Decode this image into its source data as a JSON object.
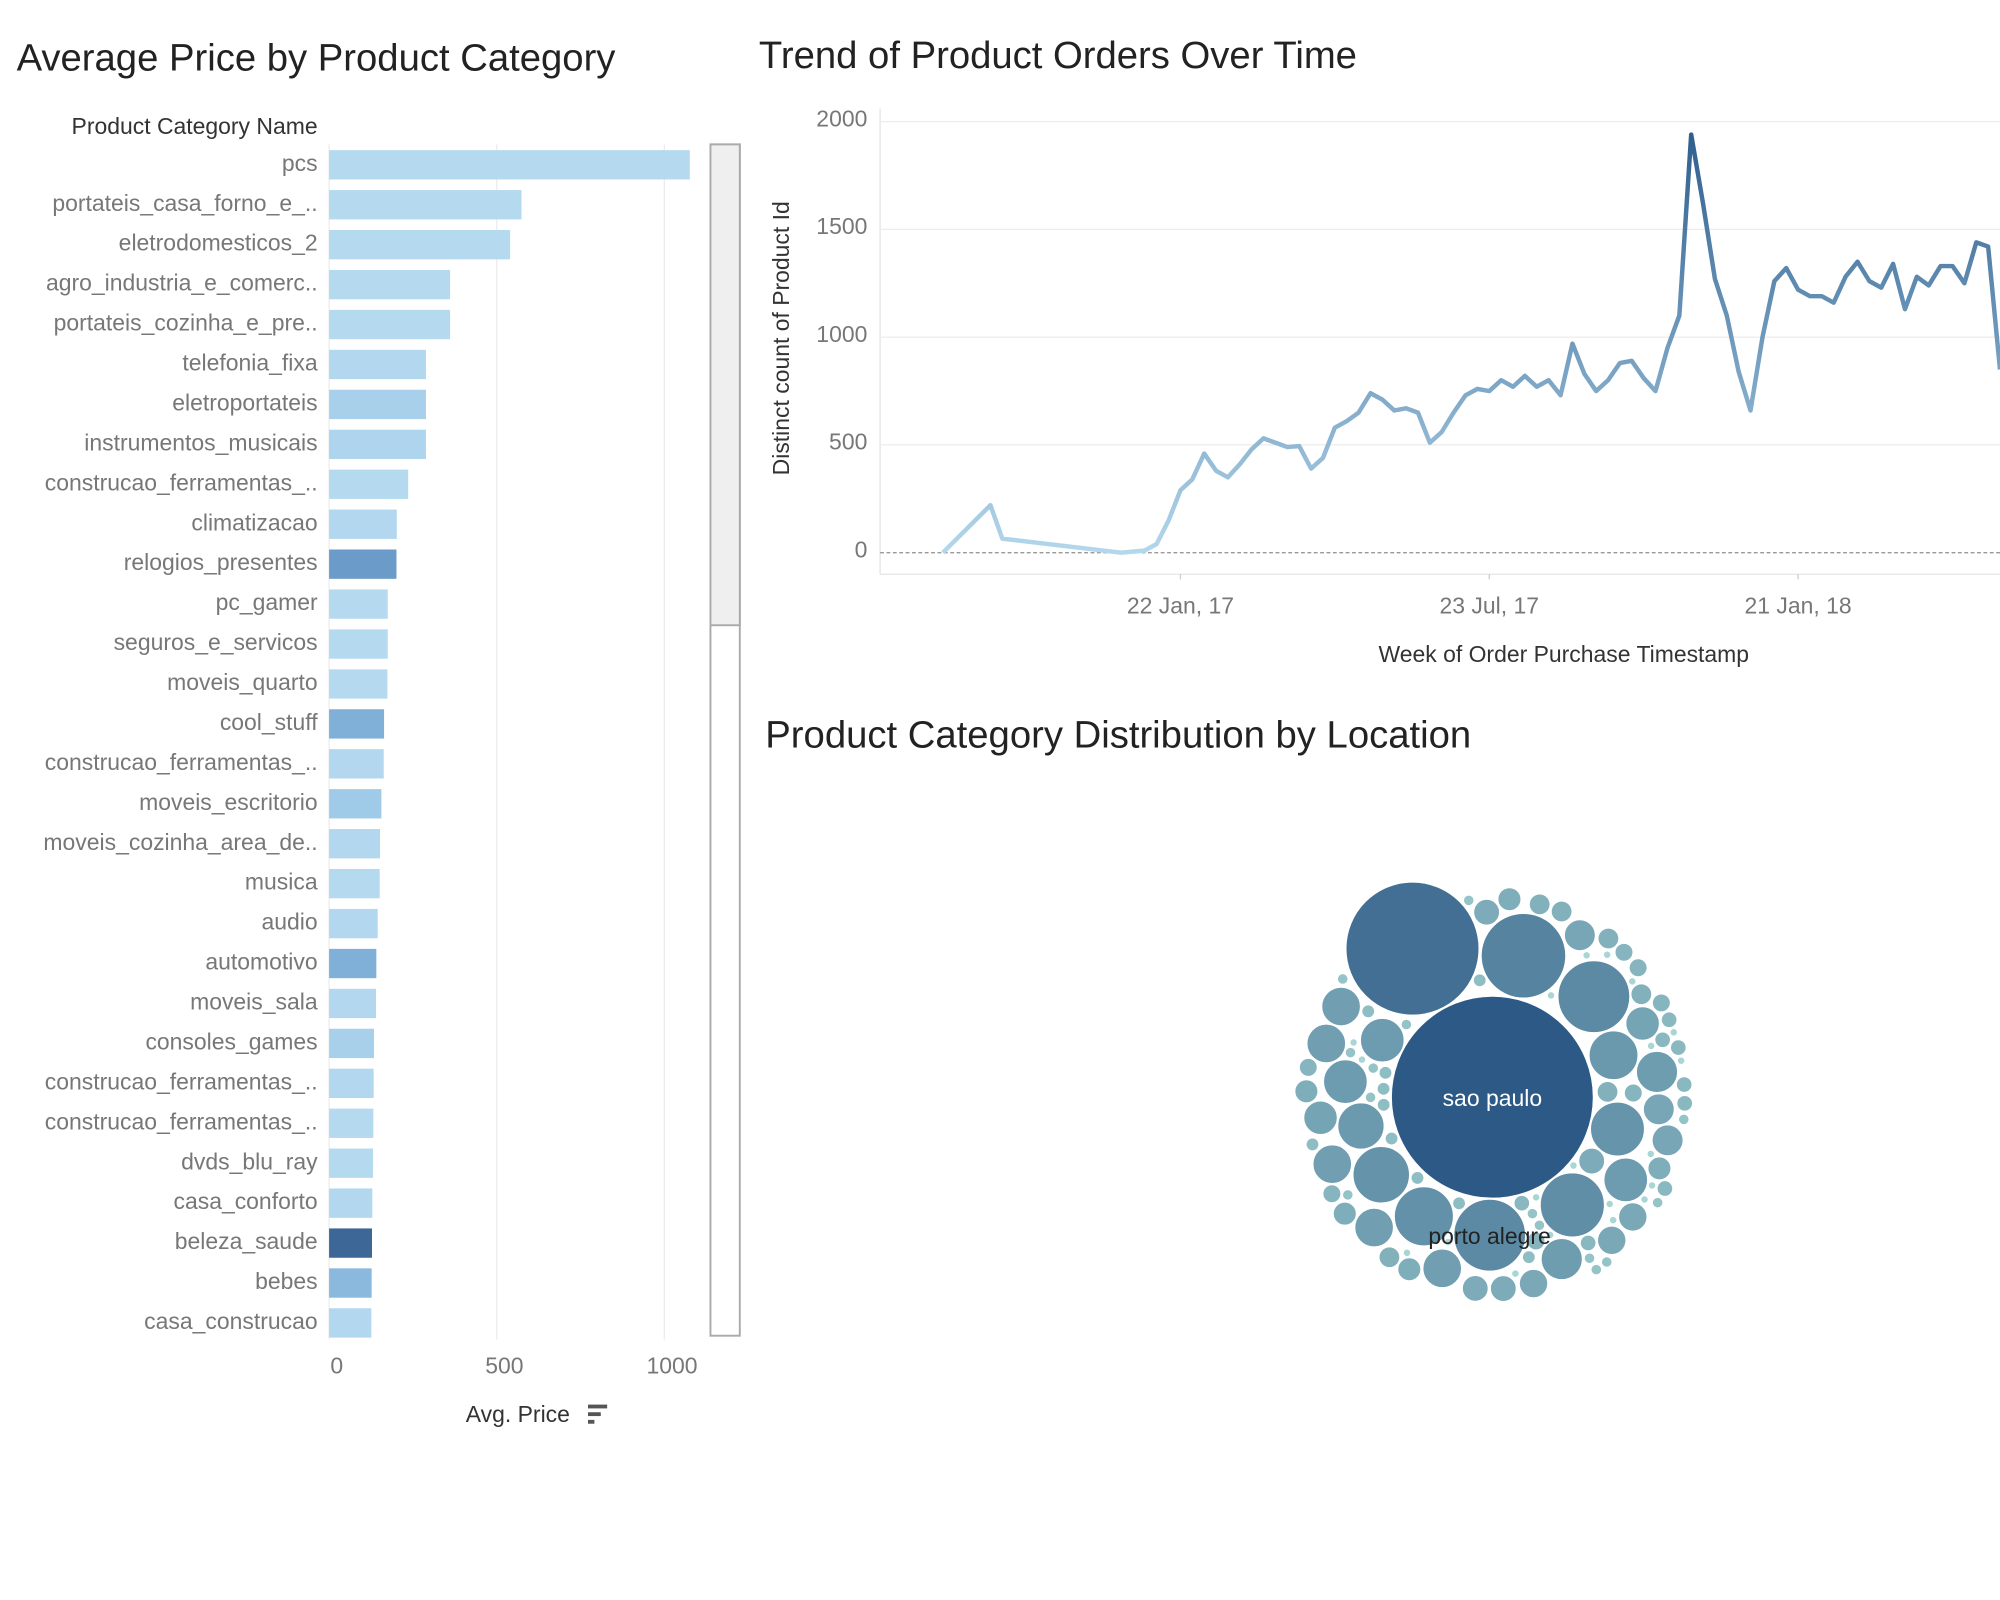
{
  "chart_data": [
    {
      "type": "hbar",
      "title": "Average Price by Product Category",
      "y_label": "Product Category Name",
      "x_label": "Avg. Price",
      "categories": [
        "pcs",
        "portateis_casa_forno_e_..",
        "eletrodomesticos_2",
        "agro_industria_e_comerc..",
        "portateis_cozinha_e_pre..",
        "telefonia_fixa",
        "eletroportateis",
        "instrumentos_musicais",
        "construcao_ferramentas_..",
        "climatizacao",
        "relogios_presentes",
        "pc_gamer",
        "seguros_e_servicos",
        "moveis_quarto",
        "cool_stuff",
        "construcao_ferramentas_..",
        "moveis_escritorio",
        "moveis_cozinha_area_de..",
        "musica",
        "audio",
        "automotivo",
        "moveis_sala",
        "consoles_games",
        "construcao_ferramentas_..",
        "construcao_ferramentas_..",
        "dvds_blu_ray",
        "casa_conforto",
        "beleza_saude",
        "bebes",
        "casa_construcao"
      ],
      "values": [
        1076,
        574,
        540,
        361,
        361,
        289,
        289,
        289,
        236,
        202,
        201,
        175,
        175,
        174,
        164,
        163,
        156,
        152,
        151,
        145,
        141,
        140,
        134,
        133,
        132,
        131,
        129,
        128,
        127,
        126
      ],
      "colors": [
        "#b5daf0",
        "#b5daf0",
        "#b5daf0",
        "#b5daf0",
        "#b5daf0",
        "#b2d7ef",
        "#a9d0eb",
        "#afd4ed",
        "#b5daf0",
        "#b2d7ef",
        "#6b9bc8",
        "#b5daf0",
        "#b5daf0",
        "#b5daf0",
        "#80b0d8",
        "#b2d7ef",
        "#a0cbe8",
        "#b2d7ef",
        "#b5daf0",
        "#b2d7ef",
        "#80b0d8",
        "#b2d7ef",
        "#a9d0eb",
        "#b2d7ef",
        "#b5daf0",
        "#b5daf0",
        "#b2d7ef",
        "#3c6797",
        "#8bb8dd",
        "#b2d7ef"
      ],
      "xlim": [
        0,
        1130
      ],
      "xticks": [
        0,
        500,
        1000
      ],
      "grid": true
    },
    {
      "type": "line",
      "title": "Trend of Product Orders Over Time",
      "y_label": "Distinct count of Product Id",
      "x_label": "Week of Order Purchase Timestamp",
      "x": [
        "2016-09-04",
        "2016-10-02",
        "2016-10-09",
        "2016-12-18",
        "2016-12-25",
        "2017-01-01",
        "2017-01-08",
        "2017-01-15",
        "2017-01-22",
        "2017-01-29",
        "2017-02-05",
        "2017-02-12",
        "2017-02-19",
        "2017-02-26",
        "2017-03-05",
        "2017-03-12",
        "2017-03-19",
        "2017-03-26",
        "2017-04-02",
        "2017-04-09",
        "2017-04-16",
        "2017-04-23",
        "2017-04-30",
        "2017-05-07",
        "2017-05-14",
        "2017-05-21",
        "2017-05-28",
        "2017-06-04",
        "2017-06-11",
        "2017-06-18",
        "2017-06-25",
        "2017-07-02",
        "2017-07-09",
        "2017-07-16",
        "2017-07-23",
        "2017-07-30",
        "2017-08-06",
        "2017-08-13",
        "2017-08-20",
        "2017-08-27",
        "2017-09-03",
        "2017-09-10",
        "2017-09-17",
        "2017-09-24",
        "2017-10-01",
        "2017-10-08",
        "2017-10-15",
        "2017-10-22",
        "2017-10-29",
        "2017-11-05",
        "2017-11-12",
        "2017-11-19",
        "2017-11-26",
        "2017-12-03",
        "2017-12-10",
        "2017-12-17",
        "2017-12-24",
        "2017-12-31",
        "2018-01-07",
        "2018-01-14",
        "2018-01-21",
        "2018-01-28",
        "2018-02-04",
        "2018-02-11",
        "2018-02-18",
        "2018-02-25",
        "2018-03-04",
        "2018-03-11",
        "2018-03-18",
        "2018-03-25",
        "2018-04-01",
        "2018-04-08",
        "2018-04-15",
        "2018-04-22",
        "2018-04-29",
        "2018-05-06",
        "2018-05-13",
        "2018-05-20"
      ],
      "values": [
        0,
        220,
        65,
        0,
        5,
        10,
        40,
        150,
        290,
        340,
        460,
        380,
        350,
        410,
        480,
        530,
        510,
        490,
        495,
        390,
        440,
        580,
        610,
        650,
        740,
        710,
        660,
        670,
        650,
        510,
        560,
        650,
        730,
        760,
        750,
        800,
        770,
        820,
        770,
        800,
        730,
        970,
        830,
        750,
        800,
        880,
        890,
        810,
        750,
        950,
        1100,
        1940,
        1620,
        1270,
        1100,
        840,
        660,
        1000,
        1260,
        1320,
        1220,
        1190,
        1190,
        1160,
        1280,
        1350,
        1260,
        1230,
        1340,
        1130,
        1280,
        1240,
        1330,
        1330,
        1250,
        1440,
        1420,
        850
      ],
      "color_range": [
        "#b3d7ec",
        "#2f5f8e"
      ],
      "xlim": [
        "2016-07-29",
        "2018-05-20"
      ],
      "xticks": [
        {
          "value": "2017-01-22",
          "label": "22 Jan, 17"
        },
        {
          "value": "2017-07-23",
          "label": "23 Jul, 17"
        },
        {
          "value": "2018-01-21",
          "label": "21 Jan, 18"
        }
      ],
      "ylim": [
        -100,
        2060
      ],
      "yticks": [
        0,
        500,
        1000,
        1500,
        2000
      ],
      "grid": true
    },
    {
      "type": "packed-bubble",
      "title": "Product Category Distribution by Location",
      "labels": [
        "sao paulo",
        null,
        null,
        "porto alegre",
        null,
        null,
        null,
        null,
        null,
        null,
        null,
        null,
        null,
        null,
        null,
        null,
        null,
        null,
        null,
        null,
        null,
        null,
        null,
        null,
        null,
        null,
        null,
        null,
        null,
        null,
        null,
        null,
        null,
        null,
        null,
        null,
        null,
        null,
        null,
        null,
        null,
        null,
        null,
        null,
        null,
        null,
        null,
        null,
        null,
        null,
        null,
        null,
        null,
        null,
        null,
        null,
        null,
        null,
        null,
        null,
        null,
        null,
        null,
        null,
        null,
        null,
        null,
        null,
        null,
        null,
        null,
        null,
        null,
        null,
        null,
        null,
        null,
        null,
        null,
        null,
        null,
        null,
        null,
        null,
        null,
        null,
        null,
        null,
        null,
        null,
        null,
        null,
        null,
        null,
        null,
        null,
        null,
        null,
        null,
        null,
        null,
        null,
        null
      ],
      "values": [
        15600,
        6760,
        2720,
        1960,
        1960,
        1560,
        1320,
        1210,
        1100,
        900,
        810,
        720,
        720,
        720,
        640,
        640,
        560,
        560,
        560,
        560,
        560,
        420,
        420,
        360,
        360,
        360,
        300,
        300,
        300,
        250,
        250,
        250,
        250,
        200,
        200,
        200,
        200,
        200,
        160,
        160,
        160,
        160,
        160,
        160,
        120,
        120,
        120,
        120,
        120,
        120,
        120,
        90,
        90,
        90,
        90,
        90,
        90,
        90,
        90,
        60,
        60,
        60,
        60,
        60,
        60,
        60,
        60,
        60,
        60,
        40,
        40,
        40,
        40,
        40,
        40,
        40,
        40,
        40,
        40,
        40,
        40,
        40,
        40,
        20,
        20,
        20,
        20,
        20,
        20,
        20,
        20,
        20,
        20,
        20,
        20,
        20,
        20,
        20,
        20,
        20,
        20,
        20,
        20
      ],
      "color_range": [
        "#a7d6d4",
        "#2c5985"
      ]
    }
  ]
}
